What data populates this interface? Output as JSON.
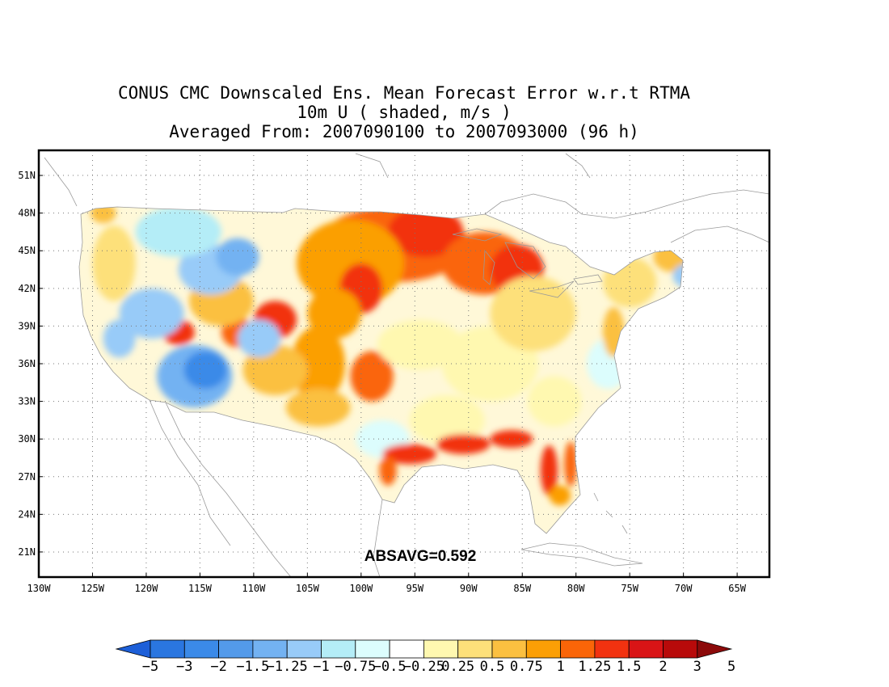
{
  "title": {
    "line1": "CONUS CMC Downscaled Ens. Mean Forecast Error w.r.t RTMA",
    "line2": "10m U ( shaded, m/s )",
    "line3": "Averaged From: 2007090100 to 2007093000 (96 h)"
  },
  "annotation": "ABSAVG=0.592",
  "lat_labels": [
    "51N",
    "48N",
    "45N",
    "42N",
    "39N",
    "36N",
    "33N",
    "30N",
    "27N",
    "24N",
    "21N"
  ],
  "lat_values": [
    51,
    48,
    45,
    42,
    39,
    36,
    33,
    30,
    27,
    24,
    21
  ],
  "lon_labels": [
    "130W",
    "125W",
    "120W",
    "115W",
    "110W",
    "105W",
    "100W",
    "95W",
    "90W",
    "85W",
    "80W",
    "75W",
    "70W",
    "65W"
  ],
  "lon_values": [
    -130,
    -125,
    -120,
    -115,
    -110,
    -105,
    -100,
    -95,
    -90,
    -85,
    -80,
    -75,
    -70,
    -65
  ],
  "map_extent": {
    "lon": [
      -130,
      -62
    ],
    "lat": [
      19,
      53
    ]
  },
  "colorbar": {
    "labels": [
      "−5",
      "−3",
      "−2",
      "−1.5",
      "−1.25",
      "−1",
      "−0.75",
      "−0.5",
      "−0.25",
      "0.25",
      "0.5",
      "0.75",
      "1",
      "1.25",
      "1.5",
      "2",
      "3",
      "5"
    ],
    "colors": [
      "#1d5fd8",
      "#2a76e0",
      "#3b8ae8",
      "#539aea",
      "#73b2f2",
      "#98cbf8",
      "#b4edf7",
      "#dcfdfd",
      "#ffffff",
      "#fff8b0",
      "#fde07a",
      "#fbc040",
      "#fb9f06",
      "#fa6508",
      "#f23210",
      "#d91416",
      "#b80a0a",
      "#8c0a0a"
    ]
  },
  "field_blobs": [
    {
      "lon": -97.0,
      "lat": 45.5,
      "rx": 7.0,
      "ry": 3.0,
      "level": 13
    },
    {
      "lon": -94.0,
      "lat": 46.5,
      "rx": 3.5,
      "ry": 2.0,
      "level": 14
    },
    {
      "lon": -88.5,
      "lat": 44.0,
      "rx": 4.0,
      "ry": 2.5,
      "level": 13
    },
    {
      "lon": -85.5,
      "lat": 43.5,
      "rx": 2.5,
      "ry": 2.0,
      "level": 14
    },
    {
      "lon": -101.0,
      "lat": 44.0,
      "rx": 5.0,
      "ry": 3.5,
      "level": 12
    },
    {
      "lon": -100.0,
      "lat": 42.0,
      "rx": 2.0,
      "ry": 2.0,
      "level": 14
    },
    {
      "lon": -102.5,
      "lat": 40.0,
      "rx": 2.5,
      "ry": 2.0,
      "level": 12
    },
    {
      "lon": -108.0,
      "lat": 39.5,
      "rx": 2.0,
      "ry": 1.5,
      "level": 14
    },
    {
      "lon": -104.0,
      "lat": 36.0,
      "rx": 2.5,
      "ry": 3.0,
      "level": 12
    },
    {
      "lon": -99.0,
      "lat": 35.0,
      "rx": 2.0,
      "ry": 2.0,
      "level": 13
    },
    {
      "lon": -108.0,
      "lat": 35.5,
      "rx": 3.0,
      "ry": 2.0,
      "level": 11
    },
    {
      "lon": -104.0,
      "lat": 32.5,
      "rx": 3.0,
      "ry": 1.5,
      "level": 11
    },
    {
      "lon": -111.5,
      "lat": 38.5,
      "rx": 1.5,
      "ry": 1.2,
      "level": 13
    },
    {
      "lon": -117.0,
      "lat": 38.5,
      "rx": 1.5,
      "ry": 1.0,
      "level": 14
    },
    {
      "lon": -113.0,
      "lat": 41.0,
      "rx": 3.0,
      "ry": 2.0,
      "level": 11
    },
    {
      "lon": -123.0,
      "lat": 44.0,
      "rx": 2.0,
      "ry": 3.0,
      "level": 10
    },
    {
      "lon": -124.0,
      "lat": 48.0,
      "rx": 1.2,
      "ry": 0.8,
      "level": 11
    },
    {
      "lon": -114.0,
      "lat": 43.5,
      "rx": 3.0,
      "ry": 2.0,
      "level": 5
    },
    {
      "lon": -111.5,
      "lat": 44.5,
      "rx": 2.0,
      "ry": 1.5,
      "level": 4
    },
    {
      "lon": -115.5,
      "lat": 35.0,
      "rx": 3.5,
      "ry": 2.5,
      "level": 4
    },
    {
      "lon": -114.5,
      "lat": 35.5,
      "rx": 2.0,
      "ry": 1.5,
      "level": 2
    },
    {
      "lon": -119.5,
      "lat": 40.0,
      "rx": 3.0,
      "ry": 2.0,
      "level": 5
    },
    {
      "lon": -122.5,
      "lat": 38.0,
      "rx": 1.5,
      "ry": 1.5,
      "level": 5
    },
    {
      "lon": -117.0,
      "lat": 46.5,
      "rx": 4.0,
      "ry": 2.0,
      "level": 6
    },
    {
      "lon": -109.5,
      "lat": 38.0,
      "rx": 2.0,
      "ry": 1.5,
      "level": 5
    },
    {
      "lon": -94.5,
      "lat": 37.5,
      "rx": 4.0,
      "ry": 2.0,
      "level": 9
    },
    {
      "lon": -88.0,
      "lat": 36.0,
      "rx": 4.5,
      "ry": 3.0,
      "level": 9
    },
    {
      "lon": -84.0,
      "lat": 40.0,
      "rx": 4.0,
      "ry": 3.0,
      "level": 10
    },
    {
      "lon": -82.0,
      "lat": 33.0,
      "rx": 2.5,
      "ry": 2.0,
      "level": 9
    },
    {
      "lon": -77.0,
      "lat": 36.0,
      "rx": 2.0,
      "ry": 2.0,
      "level": 7
    },
    {
      "lon": -75.0,
      "lat": 42.5,
      "rx": 2.5,
      "ry": 2.0,
      "level": 10
    },
    {
      "lon": -71.0,
      "lat": 44.5,
      "rx": 1.8,
      "ry": 1.2,
      "level": 11
    },
    {
      "lon": -69.5,
      "lat": 43.0,
      "rx": 1.5,
      "ry": 1.0,
      "level": 5
    },
    {
      "lon": -98.0,
      "lat": 30.0,
      "rx": 2.5,
      "ry": 1.5,
      "level": 7
    },
    {
      "lon": -92.0,
      "lat": 31.5,
      "rx": 3.5,
      "ry": 2.0,
      "level": 9
    },
    {
      "lon": -95.5,
      "lat": 28.8,
      "rx": 2.5,
      "ry": 0.8,
      "level": 14
    },
    {
      "lon": -90.5,
      "lat": 29.6,
      "rx": 2.5,
      "ry": 0.8,
      "level": 14
    },
    {
      "lon": -86.0,
      "lat": 30.0,
      "rx": 2.0,
      "ry": 0.7,
      "level": 14
    },
    {
      "lon": -82.5,
      "lat": 27.5,
      "rx": 0.8,
      "ry": 2.0,
      "level": 14
    },
    {
      "lon": -80.5,
      "lat": 28.0,
      "rx": 0.6,
      "ry": 1.8,
      "level": 13
    },
    {
      "lon": -97.5,
      "lat": 27.5,
      "rx": 0.8,
      "ry": 1.2,
      "level": 13
    },
    {
      "lon": -81.5,
      "lat": 25.5,
      "rx": 1.0,
      "ry": 0.8,
      "level": 12
    },
    {
      "lon": -76.5,
      "lat": 38.5,
      "rx": 1.0,
      "ry": 2.0,
      "level": 11
    }
  ]
}
